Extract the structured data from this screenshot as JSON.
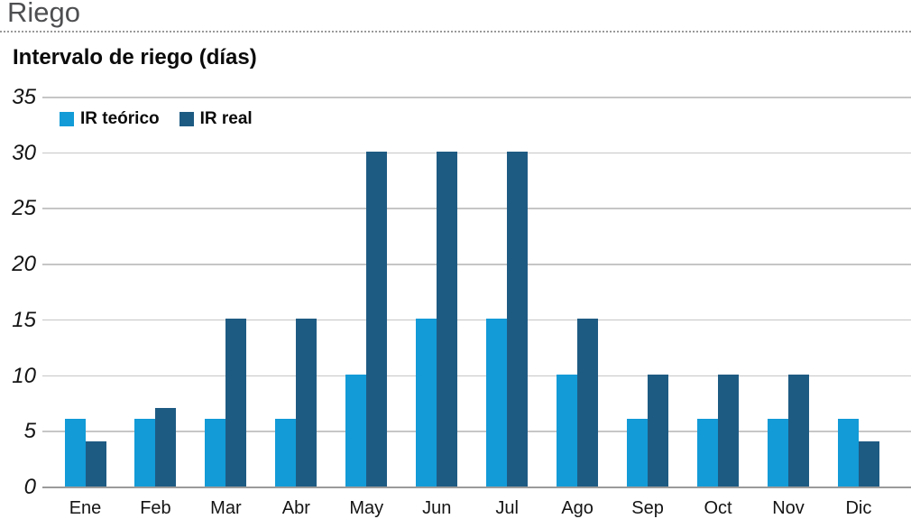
{
  "header": {
    "title": "Riego"
  },
  "chart_data": {
    "type": "bar",
    "title": "Intervalo de riego (días)",
    "categories": [
      "Ene",
      "Feb",
      "Mar",
      "Abr",
      "May",
      "Jun",
      "Jul",
      "Ago",
      "Sep",
      "Oct",
      "Nov",
      "Dic"
    ],
    "series": [
      {
        "name": "IR teórico",
        "color": "#129bd7",
        "values": [
          6,
          6,
          6,
          6,
          10,
          15,
          15,
          10,
          6,
          6,
          6,
          6
        ]
      },
      {
        "name": "IR real",
        "color": "#1e5b83",
        "values": [
          4,
          7,
          15,
          15,
          30,
          30,
          30,
          15,
          10,
          10,
          10,
          4
        ]
      }
    ],
    "ylabel": "",
    "xlabel": "",
    "ylim": [
      0,
      35
    ],
    "yticks": [
      0,
      5,
      10,
      15,
      20,
      25,
      30,
      35
    ],
    "grid": true,
    "legend_position": "top-left"
  }
}
